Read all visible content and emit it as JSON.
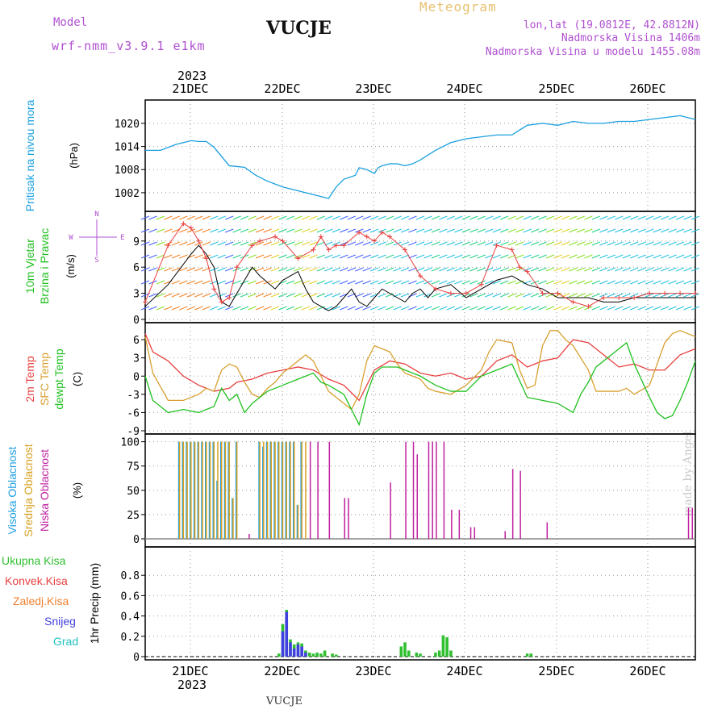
{
  "header": {
    "model_label": "Model",
    "model_name": "wrf-nmm_v3.9.1 e1km",
    "station": "VUCJE",
    "meteogram": "Meteogram",
    "lonlat": "lon,lat (19.0812E, 42.8812N)",
    "elevation": "Nadmorska Visina 1406m",
    "elevation_model": "Nadmorska Visina u modelu 1455.08m",
    "footer": "VUCJE",
    "made_by": "made by Angel"
  },
  "colors": {
    "pressure": "#1aa0e0",
    "temp2m": "#e84040",
    "sfc_temp": "#d8a030",
    "dewpt": "#20c020",
    "high_cloud": "#20a0e0",
    "mid_cloud": "#d8a020",
    "low_cloud": "#c020a0",
    "total_precip": "#30c030",
    "conv_precip": "#e84040",
    "frz_precip": "#f08030",
    "snow": "#4040e0",
    "grad": "#20c0c0"
  },
  "chart_data": [
    {
      "type": "line",
      "panel": "pressure",
      "ylabel": "Pritisak na nivou mora",
      "unit": "(hPa)",
      "ylim": [
        998,
        1024
      ],
      "yticks": [
        1002,
        1008,
        1014,
        1020
      ],
      "xlim": [
        0,
        144
      ],
      "x_date_labels": [
        "21DEC",
        "22DEC",
        "23DEC",
        "24DEC",
        "25DEC",
        "26DEC"
      ],
      "x_year": "2023",
      "x": [
        0,
        4,
        8,
        10,
        12,
        14,
        16,
        18,
        22,
        26,
        29,
        32,
        36,
        40,
        44,
        48,
        50,
        52,
        55,
        56,
        58,
        60,
        61,
        62,
        64,
        66,
        68,
        70,
        72,
        76,
        80,
        84,
        88,
        92,
        96,
        100,
        104,
        108,
        112,
        116,
        120,
        124,
        128,
        132,
        136,
        140,
        144
      ],
      "values": [
        1013.0,
        1013.0,
        1014.5,
        1015.0,
        1015.5,
        1015.3,
        1015.3,
        1013.8,
        1009.0,
        1008.6,
        1006.5,
        1005.0,
        1003.5,
        1002.5,
        1001.5,
        1000.5,
        1003.5,
        1005.5,
        1006.5,
        1008.5,
        1008.0,
        1007.0,
        1008.5,
        1009.0,
        1009.5,
        1009.5,
        1009.0,
        1009.5,
        1010.5,
        1013.0,
        1015.0,
        1016.0,
        1016.5,
        1017.0,
        1017.0,
        1019.5,
        1020.0,
        1019.5,
        1020.5,
        1020.0,
        1020.0,
        1020.5,
        1020.5,
        1021.0,
        1021.5,
        1022.0,
        1021.0
      ]
    },
    {
      "type": "line",
      "panel": "wind",
      "ylabel": "10m Vjetar Brzina i Pravac",
      "unit": "(m/s)",
      "compass": "N ^ W <-|-> E v S",
      "ylim": [
        0,
        11.5
      ],
      "yticks": [
        0,
        3,
        6,
        9
      ],
      "xlim": [
        0,
        144
      ],
      "series": [
        {
          "name": "wind speed",
          "x": [
            0,
            6,
            12,
            14,
            16,
            18,
            20,
            22,
            24,
            26,
            28,
            30,
            34,
            36,
            40,
            42,
            44,
            46,
            48,
            50,
            52,
            54,
            56,
            58,
            60,
            62,
            66,
            68,
            70,
            72,
            74,
            76,
            80,
            84,
            88,
            92,
            96,
            98,
            100,
            104,
            108,
            112,
            116,
            120,
            124,
            128,
            132,
            136,
            140,
            144
          ],
          "values": [
            1.5,
            4.0,
            7.5,
            8.5,
            7.5,
            6.0,
            2.0,
            1.5,
            3.0,
            4.5,
            6.0,
            5.0,
            3.5,
            4.5,
            5.5,
            3.5,
            2.0,
            1.5,
            1.0,
            1.5,
            2.5,
            3.5,
            2.0,
            1.5,
            2.5,
            3.5,
            2.5,
            2.0,
            3.0,
            3.5,
            2.5,
            3.5,
            4.0,
            2.5,
            3.5,
            4.5,
            5.0,
            4.5,
            4.0,
            3.5,
            2.5,
            2.5,
            2.5,
            2.0,
            2.0,
            2.5,
            2.5,
            2.5,
            2.5,
            2.5
          ]
        },
        {
          "name": "wind gust",
          "x": [
            0,
            6,
            10,
            12,
            14,
            16,
            18,
            20,
            22,
            24,
            28,
            30,
            34,
            36,
            40,
            44,
            46,
            48,
            50,
            52,
            56,
            58,
            60,
            62,
            64,
            68,
            72,
            76,
            80,
            84,
            88,
            92,
            96,
            98,
            100,
            104,
            108,
            112,
            116,
            120,
            124,
            128,
            132,
            136,
            140,
            144
          ],
          "values": [
            2.0,
            8.5,
            11.0,
            10.5,
            9.0,
            7.0,
            3.5,
            2.0,
            2.5,
            6.0,
            8.5,
            9.0,
            9.5,
            9.0,
            7.0,
            8.0,
            9.5,
            8.0,
            8.5,
            8.5,
            10.0,
            9.5,
            9.0,
            10.0,
            9.5,
            8.0,
            5.0,
            3.5,
            3.0,
            3.0,
            4.0,
            8.5,
            8.0,
            6.0,
            5.5,
            3.0,
            3.0,
            2.0,
            1.5,
            2.5,
            2.5,
            2.5,
            3.0,
            3.0,
            3.0,
            3.0
          ]
        }
      ]
    },
    {
      "type": "line",
      "panel": "temperature",
      "ylabel": [
        "2m Temp",
        "SFC Temp",
        "dewpt Temp"
      ],
      "unit": "(C)",
      "ylim": [
        -9,
        7.5
      ],
      "yticks": [
        -9,
        -6,
        -3,
        0,
        3,
        6
      ],
      "xlim": [
        0,
        144
      ],
      "series": [
        {
          "name": "2m Temp",
          "x": [
            0,
            2,
            6,
            10,
            14,
            18,
            22,
            24,
            28,
            32,
            36,
            40,
            44,
            48,
            52,
            56,
            60,
            64,
            68,
            72,
            76,
            80,
            84,
            88,
            92,
            96,
            100,
            104,
            108,
            112,
            116,
            120,
            124,
            128,
            132,
            136,
            140,
            144
          ],
          "values": [
            7.0,
            4.0,
            2.5,
            0.0,
            -1.5,
            -2.5,
            -2.0,
            -1.0,
            -0.5,
            0.5,
            1.0,
            1.5,
            1.0,
            -0.5,
            -1.5,
            -4.0,
            1.0,
            2.5,
            2.0,
            0.5,
            0.0,
            0.5,
            -0.5,
            0.0,
            2.5,
            3.5,
            1.5,
            2.5,
            3.0,
            6.0,
            5.5,
            3.5,
            1.5,
            2.0,
            1.0,
            1.0,
            3.5,
            4.5
          ]
        },
        {
          "name": "SFC Temp",
          "x": [
            0,
            2,
            6,
            10,
            14,
            16,
            18,
            20,
            22,
            24,
            26,
            28,
            30,
            32,
            34,
            36,
            38,
            40,
            42,
            44,
            46,
            48,
            50,
            52,
            54,
            56,
            58,
            60,
            62,
            64,
            66,
            68,
            70,
            72,
            74,
            76,
            80,
            84,
            88,
            90,
            92,
            96,
            98,
            100,
            102,
            104,
            106,
            108,
            110,
            112,
            114,
            116,
            118,
            120,
            124,
            126,
            128,
            132,
            134,
            136,
            138,
            140,
            142,
            144
          ],
          "values": [
            6.5,
            0.5,
            -4.0,
            -4.0,
            -3.0,
            -2.0,
            -2.5,
            1.0,
            2.0,
            1.5,
            -1.0,
            -3.0,
            -3.5,
            -2.0,
            -1.0,
            0.5,
            1.5,
            2.5,
            3.5,
            2.5,
            0.0,
            -2.5,
            -3.5,
            -4.5,
            -5.5,
            -3.0,
            2.5,
            5.0,
            4.5,
            4.0,
            2.0,
            0.5,
            0.0,
            -0.5,
            -2.0,
            -2.5,
            -3.0,
            -1.5,
            1.0,
            4.0,
            6.0,
            5.5,
            1.0,
            -2.0,
            -1.5,
            5.0,
            7.5,
            7.5,
            6.0,
            5.0,
            3.0,
            1.0,
            -2.5,
            -2.5,
            -2.5,
            -2.0,
            -3.0,
            -1.5,
            2.0,
            5.5,
            7.0,
            7.5,
            7.0,
            6.5
          ]
        },
        {
          "name": "dewpt Temp",
          "x": [
            0,
            2,
            4,
            6,
            10,
            14,
            18,
            20,
            22,
            24,
            26,
            28,
            30,
            32,
            36,
            40,
            44,
            46,
            48,
            52,
            56,
            58,
            60,
            62,
            64,
            66,
            68,
            70,
            72,
            76,
            80,
            84,
            88,
            92,
            96,
            100,
            104,
            108,
            112,
            114,
            116,
            118,
            120,
            124,
            126,
            128,
            132,
            134,
            136,
            138,
            140,
            142,
            144
          ],
          "values": [
            0.0,
            -4.0,
            -5.0,
            -6.0,
            -5.5,
            -6.0,
            -5.0,
            -2.0,
            -4.0,
            -3.0,
            -6.0,
            -4.5,
            -3.5,
            -2.5,
            -1.5,
            -0.5,
            0.5,
            -1.0,
            -1.5,
            -3.0,
            -8.0,
            -3.0,
            0.5,
            1.5,
            1.5,
            1.5,
            1.0,
            0.5,
            0.0,
            -1.5,
            -2.5,
            -2.5,
            0.0,
            1.0,
            2.0,
            -3.5,
            -4.0,
            -4.5,
            -6.0,
            -3.0,
            -1.0,
            1.5,
            2.5,
            4.5,
            5.5,
            2.0,
            -3.5,
            -6.0,
            -7.0,
            -6.5,
            -4.0,
            -1.0,
            2.5
          ]
        }
      ]
    },
    {
      "type": "bar",
      "panel": "cloud",
      "ylabel": [
        "Visoka Oblacnost",
        "Srednja Oblacnost",
        "Niska Oblacnost"
      ],
      "unit": "(%)",
      "ylim": [
        0,
        100
      ],
      "yticks": [
        0,
        25,
        50,
        75,
        100
      ],
      "xlim": [
        0,
        144
      ],
      "series": [
        {
          "name": "Visoka Oblacnost",
          "x": [
            9,
            10,
            11,
            12,
            13,
            14,
            15,
            16,
            17,
            18,
            19,
            20,
            21,
            22,
            23,
            24,
            30,
            31,
            32,
            33,
            34,
            35,
            36,
            37,
            38,
            39,
            40,
            41
          ],
          "values": [
            100,
            100,
            100,
            100,
            100,
            100,
            100,
            100,
            100,
            100,
            60,
            100,
            100,
            100,
            42,
            100,
            100,
            95,
            100,
            100,
            100,
            100,
            100,
            100,
            100,
            100,
            35,
            100
          ]
        },
        {
          "name": "Srednja Oblacnost",
          "x": [
            9,
            10,
            11,
            12,
            13,
            14,
            15,
            16,
            17,
            18,
            19,
            20,
            21,
            22,
            23,
            24,
            30,
            31,
            32,
            33,
            34,
            35,
            36,
            37,
            38,
            39,
            40,
            41,
            42
          ],
          "values": [
            100,
            100,
            100,
            100,
            100,
            100,
            100,
            100,
            100,
            100,
            100,
            100,
            100,
            100,
            42,
            100,
            100,
            100,
            100,
            100,
            100,
            100,
            100,
            100,
            100,
            100,
            35,
            100,
            100
          ]
        },
        {
          "name": "Niska Oblacnost",
          "x": [
            27,
            43,
            45,
            48,
            52,
            53,
            64,
            68,
            70,
            71,
            74,
            75,
            76,
            78,
            80,
            82,
            85,
            86,
            94,
            96,
            98,
            105,
            142,
            143
          ],
          "values": [
            5,
            100,
            100,
            100,
            42,
            42,
            58,
            100,
            100,
            87,
            100,
            100,
            100,
            100,
            30,
            30,
            12,
            12,
            8,
            72,
            70,
            17,
            32,
            32
          ]
        }
      ]
    },
    {
      "type": "bar",
      "panel": "precipitation",
      "ylabel": "1hr Precip",
      "unit": "(mm)",
      "legend": [
        "Ukupna Kisa",
        "Konvek.Kisa",
        "Zaledj.Kisa",
        "Snijeg",
        "Grad"
      ],
      "ylim": [
        0,
        1.0
      ],
      "yticks": [
        0,
        0.2,
        0.4,
        0.6,
        0.8
      ],
      "xlim": [
        0,
        144
      ],
      "series": [
        {
          "name": "Ukupna Kisa",
          "x": [
            35,
            36,
            37,
            38,
            39,
            40,
            41,
            42,
            43,
            44,
            45,
            46,
            47,
            49,
            50,
            67,
            68,
            69,
            71,
            72,
            76,
            77,
            78,
            79,
            80,
            100,
            101
          ],
          "values": [
            0.03,
            0.32,
            0.46,
            0.17,
            0.12,
            0.14,
            0.13,
            0.06,
            0.04,
            0.03,
            0.04,
            0.03,
            0.06,
            0.03,
            0.02,
            0.1,
            0.14,
            0.06,
            0.04,
            0.03,
            0.04,
            0.06,
            0.21,
            0.19,
            0.06,
            0.03,
            0.03
          ]
        },
        {
          "name": "Snijeg",
          "x": [
            36,
            37,
            38,
            39,
            40,
            41,
            42
          ],
          "values": [
            0.25,
            0.44,
            0.14,
            0.08,
            0.12,
            0.1,
            0.04
          ]
        }
      ]
    }
  ]
}
